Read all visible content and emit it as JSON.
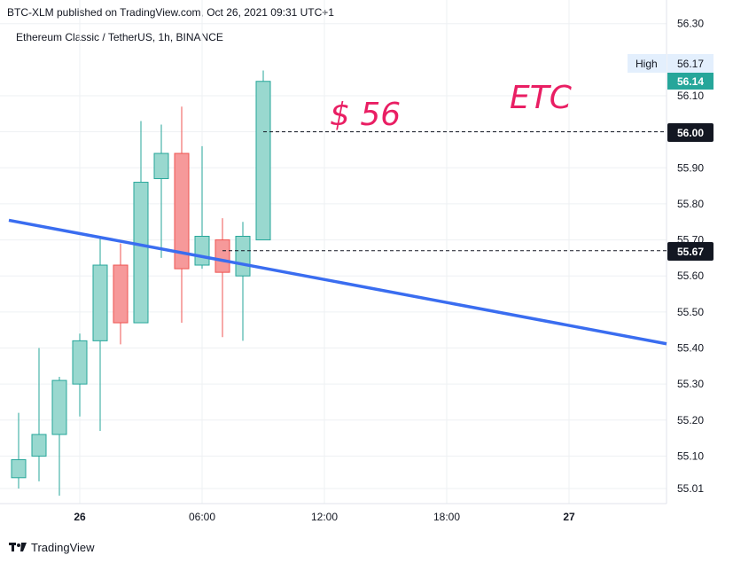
{
  "header": {
    "published_text": "BTC-XLM published on TradingView.com, Oct 26, 2021 09:31 UTC+1",
    "symbol_title": "Ethereum Classic / TetherUS, 1h, BINANCE"
  },
  "footer": {
    "logo_text": "TradingView"
  },
  "annotations": {
    "price_text": "$ 56",
    "ticker_text": "ETC"
  },
  "price_labels": {
    "high_label": "High",
    "high_value": "56.17",
    "last_value": "56.14",
    "line_upper": "56.00",
    "line_lower": "55.67"
  },
  "colors": {
    "bull": "#26a69a",
    "bull_fill": "#99d8cf",
    "bear": "#ef5350",
    "bear_fill": "#f6999a",
    "trendline": "#3a6df0",
    "annotation": "#e91e63",
    "grid": "#eef0f3"
  },
  "chart_data": {
    "type": "candlestick",
    "y_axis": {
      "ticks": [
        "55.01",
        "55.10",
        "55.20",
        "55.30",
        "55.40",
        "55.50",
        "55.60",
        "55.70",
        "55.80",
        "55.90",
        "56.00",
        "56.10",
        "56.30"
      ],
      "ylim": [
        54.99,
        56.31
      ]
    },
    "x_axis": {
      "ticks": [
        "26",
        "06:00",
        "12:00",
        "18:00",
        "27"
      ]
    },
    "candles": [
      {
        "t": "2021-10-25 21:00",
        "open": 55.04,
        "high": 55.22,
        "low": 55.01,
        "close": 55.09
      },
      {
        "t": "2021-10-25 22:00",
        "open": 55.1,
        "high": 55.4,
        "low": 55.03,
        "close": 55.16
      },
      {
        "t": "2021-10-25 23:00",
        "open": 55.16,
        "high": 55.32,
        "low": 54.99,
        "close": 55.31
      },
      {
        "t": "2021-10-26 00:00",
        "open": 55.3,
        "high": 55.44,
        "low": 55.21,
        "close": 55.42
      },
      {
        "t": "2021-10-26 01:00",
        "open": 55.42,
        "high": 55.71,
        "low": 55.17,
        "close": 55.63
      },
      {
        "t": "2021-10-26 02:00",
        "open": 55.63,
        "high": 55.69,
        "low": 55.41,
        "close": 55.47
      },
      {
        "t": "2021-10-26 03:00",
        "open": 55.47,
        "high": 56.03,
        "low": 55.47,
        "close": 55.86
      },
      {
        "t": "2021-10-26 04:00",
        "open": 55.87,
        "high": 56.02,
        "low": 55.65,
        "close": 55.94
      },
      {
        "t": "2021-10-26 05:00",
        "open": 55.94,
        "high": 56.07,
        "low": 55.47,
        "close": 55.62
      },
      {
        "t": "2021-10-26 06:00",
        "open": 55.63,
        "high": 55.96,
        "low": 55.62,
        "close": 55.71
      },
      {
        "t": "2021-10-26 07:00",
        "open": 55.7,
        "high": 55.76,
        "low": 55.43,
        "close": 55.61
      },
      {
        "t": "2021-10-26 08:00",
        "open": 55.6,
        "high": 55.75,
        "low": 55.42,
        "close": 55.71
      },
      {
        "t": "2021-10-26 09:00",
        "open": 55.7,
        "high": 56.17,
        "low": 55.7,
        "close": 56.14
      }
    ],
    "trendline": {
      "start": {
        "t": "2021-10-25 20:00",
        "price": 55.76
      },
      "end": {
        "t": "2021-10-27 04:00",
        "price": 55.42
      }
    },
    "horizontal_lines": [
      {
        "price": 56.0,
        "from_t": "2021-10-26 09:00"
      },
      {
        "price": 55.67,
        "from_t": "2021-10-26 07:00"
      }
    ]
  }
}
